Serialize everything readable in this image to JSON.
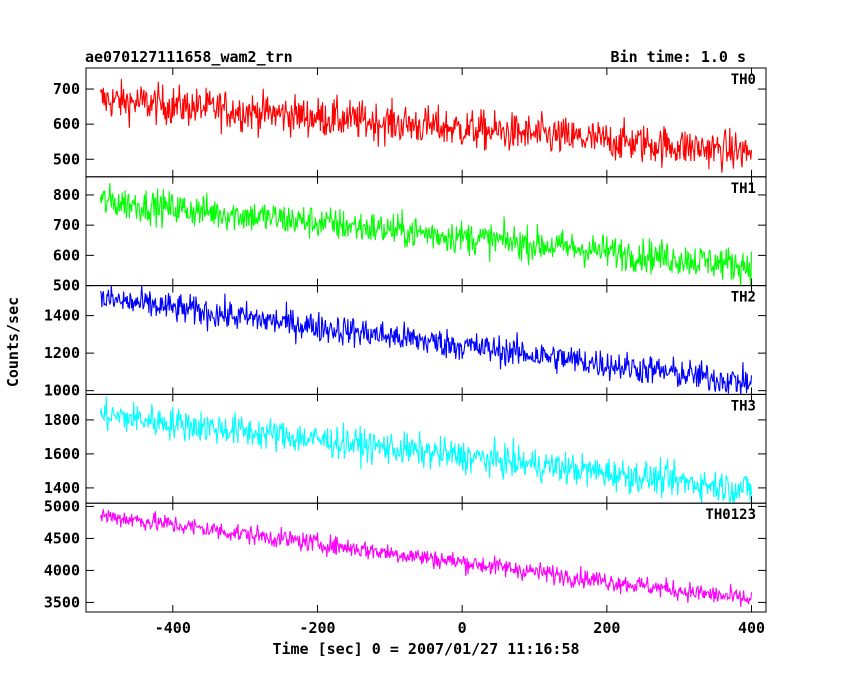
{
  "chart_data": {
    "type": "line",
    "title": "ae070127111658_wam2_trn",
    "bin_time": "Bin time: 1.0 s",
    "xlabel": "Time [sec] 0 = 2007/01/27 11:16:58",
    "ylabel": "Counts/sec",
    "xlim": [
      -520,
      420
    ],
    "x_ticks": [
      -400,
      -200,
      0,
      200,
      400
    ],
    "x_range": [
      -500,
      400
    ],
    "grid": false,
    "panels": [
      {
        "name": "TH0",
        "color": "#ff0000",
        "ylim": [
          450,
          760
        ],
        "y_ticks": [
          500,
          600,
          700
        ],
        "trend": {
          "x": [
            -500,
            400
          ],
          "y": [
            670,
            520
          ]
        },
        "noise_amplitude": 28
      },
      {
        "name": "TH1",
        "color": "#00ff00",
        "ylim": [
          500,
          860
        ],
        "y_ticks": [
          500,
          600,
          700,
          800
        ],
        "trend": {
          "x": [
            -500,
            400
          ],
          "y": [
            780,
            565
          ]
        },
        "noise_amplitude": 28
      },
      {
        "name": "TH2",
        "color": "#0000ff",
        "ylim": [
          980,
          1560
        ],
        "y_ticks": [
          1000,
          1200,
          1400
        ],
        "trend": {
          "x": [
            -500,
            400
          ],
          "y": [
            1490,
            1040
          ]
        },
        "noise_amplitude": 40
      },
      {
        "name": "TH3",
        "color": "#00ffff",
        "ylim": [
          1310,
          1950
        ],
        "y_ticks": [
          1400,
          1600,
          1800
        ],
        "trend": {
          "x": [
            -500,
            400
          ],
          "y": [
            1830,
            1390
          ]
        },
        "noise_amplitude": 48
      },
      {
        "name": "TH0123",
        "color": "#ff00ff",
        "ylim": [
          3350,
          5050
        ],
        "y_ticks": [
          3500,
          4000,
          4500,
          5000
        ],
        "trend": {
          "x": [
            -500,
            400
          ],
          "y": [
            4860,
            3540
          ]
        },
        "noise_amplitude": 75
      }
    ]
  }
}
